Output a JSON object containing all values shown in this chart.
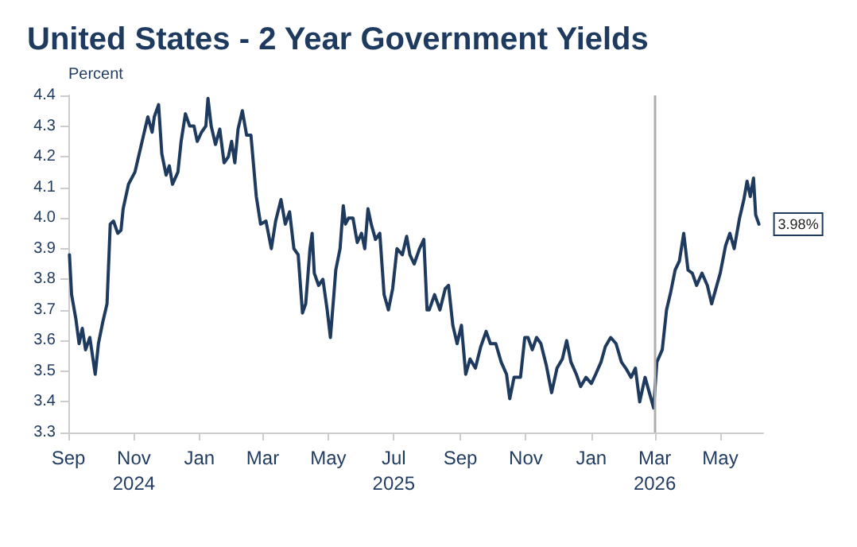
{
  "chart_data": {
    "type": "line",
    "title": "United States - 2 Year Government Yields",
    "ylabel": "Percent",
    "x": [
      "2024-09-02",
      "2024-09-04",
      "2024-09-08",
      "2024-09-11",
      "2024-09-14",
      "2024-09-17",
      "2024-09-21",
      "2024-09-26",
      "2024-09-29",
      "2024-10-03",
      "2024-10-07",
      "2024-10-10",
      "2024-10-13",
      "2024-10-17",
      "2024-10-20",
      "2024-10-22",
      "2024-10-27",
      "2024-11-02",
      "2024-11-06",
      "2024-11-10",
      "2024-11-14",
      "2024-11-18",
      "2024-11-20",
      "2024-11-24",
      "2024-11-27",
      "2024-12-01",
      "2024-12-04",
      "2024-12-07",
      "2024-12-12",
      "2024-12-15",
      "2024-12-19",
      "2024-12-23",
      "2024-12-27",
      "2024-12-30",
      "2025-01-03",
      "2025-01-07",
      "2025-01-09",
      "2025-01-12",
      "2025-01-16",
      "2025-01-20",
      "2025-01-24",
      "2025-01-28",
      "2025-01-31",
      "2025-02-03",
      "2025-02-06",
      "2025-02-10",
      "2025-02-14",
      "2025-02-18",
      "2025-02-23",
      "2025-02-27",
      "2025-03-04",
      "2025-03-09",
      "2025-03-13",
      "2025-03-18",
      "2025-03-22",
      "2025-03-26",
      "2025-03-30",
      "2025-04-03",
      "2025-04-07",
      "2025-04-10",
      "2025-04-14",
      "2025-04-16",
      "2025-04-18",
      "2025-04-22",
      "2025-04-26",
      "2025-04-30",
      "2025-05-03",
      "2025-05-06",
      "2025-05-08",
      "2025-05-12",
      "2025-05-15",
      "2025-05-17",
      "2025-05-20",
      "2025-05-24",
      "2025-05-28",
      "2025-06-01",
      "2025-06-04",
      "2025-06-07",
      "2025-06-10",
      "2025-06-14",
      "2025-06-18",
      "2025-06-22",
      "2025-06-26",
      "2025-06-30",
      "2025-07-04",
      "2025-07-09",
      "2025-07-13",
      "2025-07-16",
      "2025-07-20",
      "2025-07-25",
      "2025-07-29",
      "2025-08-01",
      "2025-08-03",
      "2025-08-08",
      "2025-08-13",
      "2025-08-18",
      "2025-08-21",
      "2025-08-25",
      "2025-08-29",
      "2025-09-02",
      "2025-09-06",
      "2025-09-10",
      "2025-09-15",
      "2025-09-20",
      "2025-09-25",
      "2025-09-29",
      "2025-10-04",
      "2025-10-09",
      "2025-10-14",
      "2025-10-17",
      "2025-10-21",
      "2025-10-27",
      "2025-10-31",
      "2025-11-03",
      "2025-11-07",
      "2025-11-11",
      "2025-11-15",
      "2025-11-20",
      "2025-11-25",
      "2025-11-30",
      "2025-12-05",
      "2025-12-09",
      "2025-12-13",
      "2025-12-18",
      "2025-12-22",
      "2025-12-27",
      "2026-01-01",
      "2026-01-05",
      "2026-01-10",
      "2026-01-14",
      "2026-01-19",
      "2026-01-24",
      "2026-01-29",
      "2026-02-02",
      "2026-02-07",
      "2026-02-11",
      "2026-02-15",
      "2026-02-20",
      "2026-02-24",
      "2026-02-28",
      "2026-03-03",
      "2026-03-08",
      "2026-03-12",
      "2026-03-16",
      "2026-03-20",
      "2026-03-24",
      "2026-03-28",
      "2026-04-01",
      "2026-04-05",
      "2026-04-09",
      "2026-04-14",
      "2026-04-19",
      "2026-04-23",
      "2026-04-27",
      "2026-05-01",
      "2026-05-06",
      "2026-05-10",
      "2026-05-14",
      "2026-05-19",
      "2026-05-23",
      "2026-05-26",
      "2026-05-29",
      "2026-06-01",
      "2026-06-03",
      "2026-06-06"
    ],
    "series": [
      {
        "color": "#1f3a5f",
        "values": [
          3.88,
          3.75,
          3.67,
          3.59,
          3.64,
          3.57,
          3.61,
          3.49,
          3.59,
          3.66,
          3.72,
          3.98,
          3.99,
          3.95,
          3.96,
          4.03,
          4.11,
          4.15,
          4.21,
          4.27,
          4.33,
          4.28,
          4.33,
          4.37,
          4.21,
          4.14,
          4.17,
          4.11,
          4.15,
          4.25,
          4.34,
          4.3,
          4.3,
          4.25,
          4.28,
          4.3,
          4.39,
          4.3,
          4.24,
          4.29,
          4.18,
          4.2,
          4.25,
          4.18,
          4.29,
          4.35,
          4.27,
          4.27,
          4.07,
          3.98,
          3.99,
          3.9,
          3.99,
          4.06,
          3.98,
          4.02,
          3.9,
          3.88,
          3.69,
          3.72,
          3.9,
          3.95,
          3.82,
          3.78,
          3.8,
          3.7,
          3.61,
          3.74,
          3.83,
          3.9,
          4.04,
          3.98,
          4.0,
          4.0,
          3.92,
          3.95,
          3.9,
          4.03,
          3.98,
          3.93,
          3.95,
          3.75,
          3.7,
          3.77,
          3.9,
          3.88,
          3.94,
          3.88,
          3.85,
          3.9,
          3.93,
          3.7,
          3.7,
          3.75,
          3.7,
          3.77,
          3.78,
          3.65,
          3.59,
          3.65,
          3.49,
          3.54,
          3.51,
          3.58,
          3.63,
          3.59,
          3.59,
          3.53,
          3.49,
          3.41,
          3.48,
          3.48,
          3.61,
          3.61,
          3.57,
          3.61,
          3.59,
          3.52,
          3.43,
          3.51,
          3.54,
          3.6,
          3.53,
          3.49,
          3.45,
          3.48,
          3.46,
          3.49,
          3.53,
          3.58,
          3.61,
          3.59,
          3.53,
          3.51,
          3.48,
          3.51,
          3.4,
          3.48,
          3.43,
          3.38,
          3.53,
          3.57,
          3.7,
          3.76,
          3.83,
          3.86,
          3.95,
          3.83,
          3.82,
          3.78,
          3.82,
          3.78,
          3.72,
          3.77,
          3.82,
          3.91,
          3.95,
          3.9,
          4.0,
          4.06,
          4.12,
          4.07,
          4.13,
          4.01,
          3.98
        ]
      }
    ],
    "xlim": [
      "2024-09-01",
      "2026-06-10"
    ],
    "xticks": [
      {
        "value": "2024-09-01",
        "label": "Sep"
      },
      {
        "value": "2024-11-01",
        "label": "Nov\n2024"
      },
      {
        "value": "2025-01-01",
        "label": "Jan"
      },
      {
        "value": "2025-03-01",
        "label": "Mar"
      },
      {
        "value": "2025-05-01",
        "label": "May"
      },
      {
        "value": "2025-07-01",
        "label": "Jul\n2025"
      },
      {
        "value": "2025-09-01",
        "label": "Sep"
      },
      {
        "value": "2025-11-01",
        "label": "Nov"
      },
      {
        "value": "2026-01-01",
        "label": "Jan"
      },
      {
        "value": "2026-03-01",
        "label": "Mar\n2026"
      },
      {
        "value": "2026-05-01",
        "label": "May"
      }
    ],
    "ylim": [
      3.3,
      4.4
    ],
    "yticks": [
      3.3,
      3.4,
      3.5,
      3.6,
      3.7,
      3.8,
      3.9,
      {
        "value": 4,
        "label": "4.0"
      },
      4.1,
      4.2,
      4.3,
      4.4
    ],
    "ref_lines": [
      {
        "axis": "x",
        "value": "2026-03-01",
        "color": "#b0b0b0"
      }
    ],
    "annotations": [
      {
        "text": "3.98%",
        "x": "2026-06-06",
        "y": 3.98
      }
    ],
    "grid": false,
    "marker": "none",
    "line_style": "solid"
  }
}
